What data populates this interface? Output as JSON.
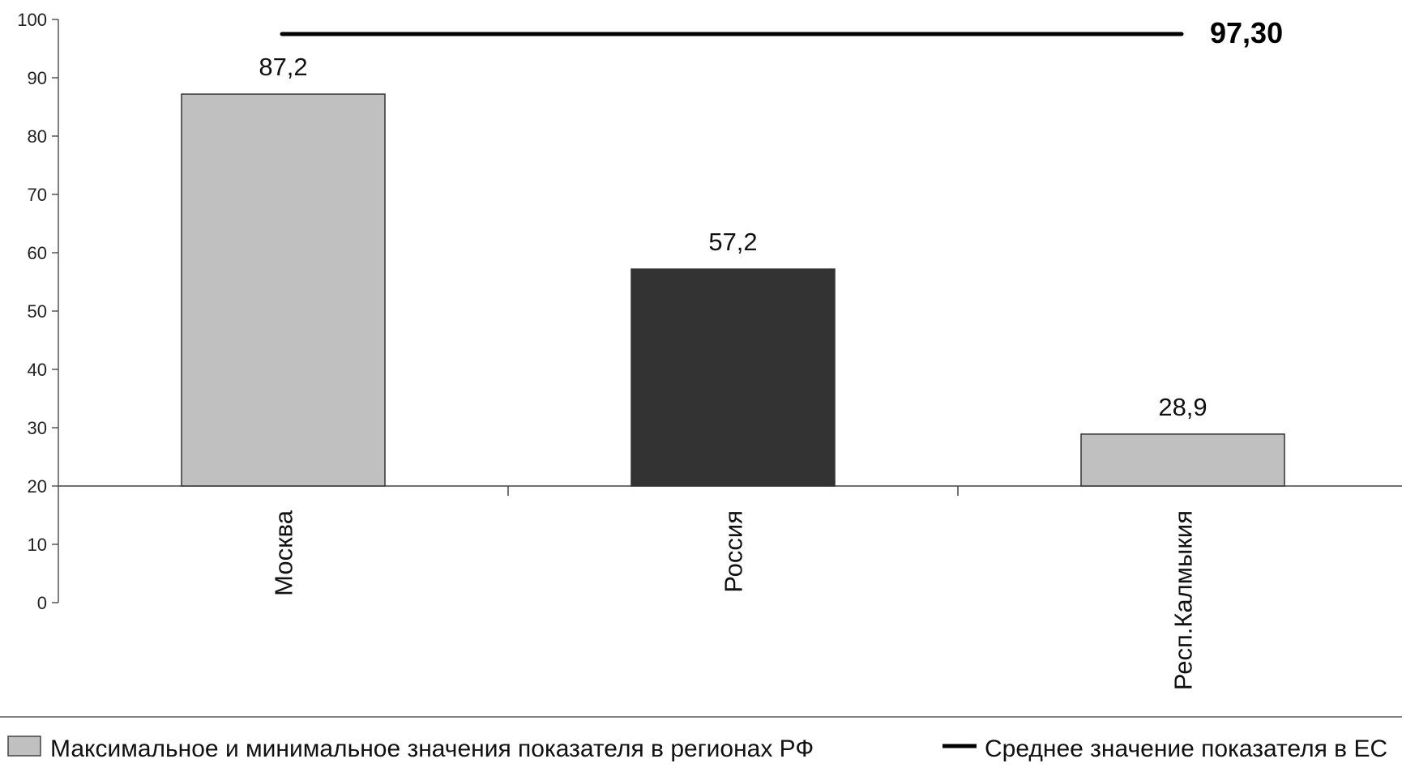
{
  "chart_data": {
    "type": "bar",
    "categories": [
      "Москва",
      "Россия",
      "Респ.Калмыкия"
    ],
    "values": [
      87.2,
      57.2,
      28.9
    ],
    "data_labels": [
      "87,2",
      "57,2",
      "28,9"
    ],
    "bar_colors": [
      "#c0c0c0",
      "#333333",
      "#c0c0c0"
    ],
    "y_ticks": [
      0,
      10,
      20,
      30,
      40,
      50,
      60,
      70,
      80,
      90,
      100
    ],
    "ylim": [
      0,
      100
    ],
    "baseline": 20,
    "reference_line": {
      "value": 97.3,
      "label": "97,30",
      "color": "#000000"
    },
    "legend": {
      "placement": "bottom",
      "entries": [
        {
          "label": "Максимальное и минимальное значения показателя в регионах РФ",
          "swatch": "#c0c0c0",
          "kind": "box"
        },
        {
          "label": "Среднее значение показателя в ЕС",
          "swatch": "#000000",
          "kind": "line"
        }
      ]
    },
    "xlabel": "",
    "ylabel": "",
    "grid": false
  }
}
